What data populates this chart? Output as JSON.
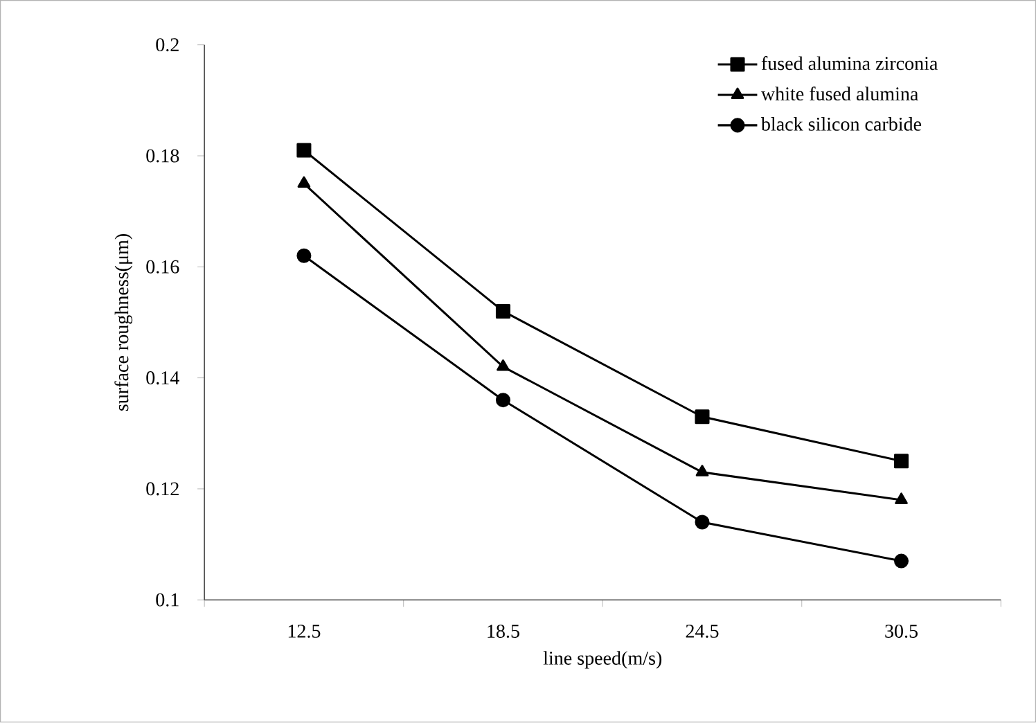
{
  "chart_data": {
    "type": "line",
    "xlabel": "line speed(m/s)",
    "ylabel": "surface roughness(μm)",
    "categories": [
      "12.5",
      "18.5",
      "24.5",
      "30.5"
    ],
    "series": [
      {
        "name": "fused alumina zirconia",
        "color": "#000000",
        "marker": "square",
        "values": [
          0.181,
          0.152,
          0.133,
          0.125
        ]
      },
      {
        "name": "white fused alumina",
        "color": "#000000",
        "marker": "triangle",
        "values": [
          0.175,
          0.142,
          0.123,
          0.118
        ]
      },
      {
        "name": "black silicon carbide",
        "color": "#000000",
        "marker": "circle",
        "values": [
          0.162,
          0.136,
          0.114,
          0.107
        ]
      }
    ],
    "ylim": [
      0.1,
      0.2
    ],
    "yticks": [
      0.1,
      0.12,
      0.14,
      0.16,
      0.18,
      0.2
    ],
    "grid": false,
    "legend": "top right",
    "line_style": "solid"
  }
}
